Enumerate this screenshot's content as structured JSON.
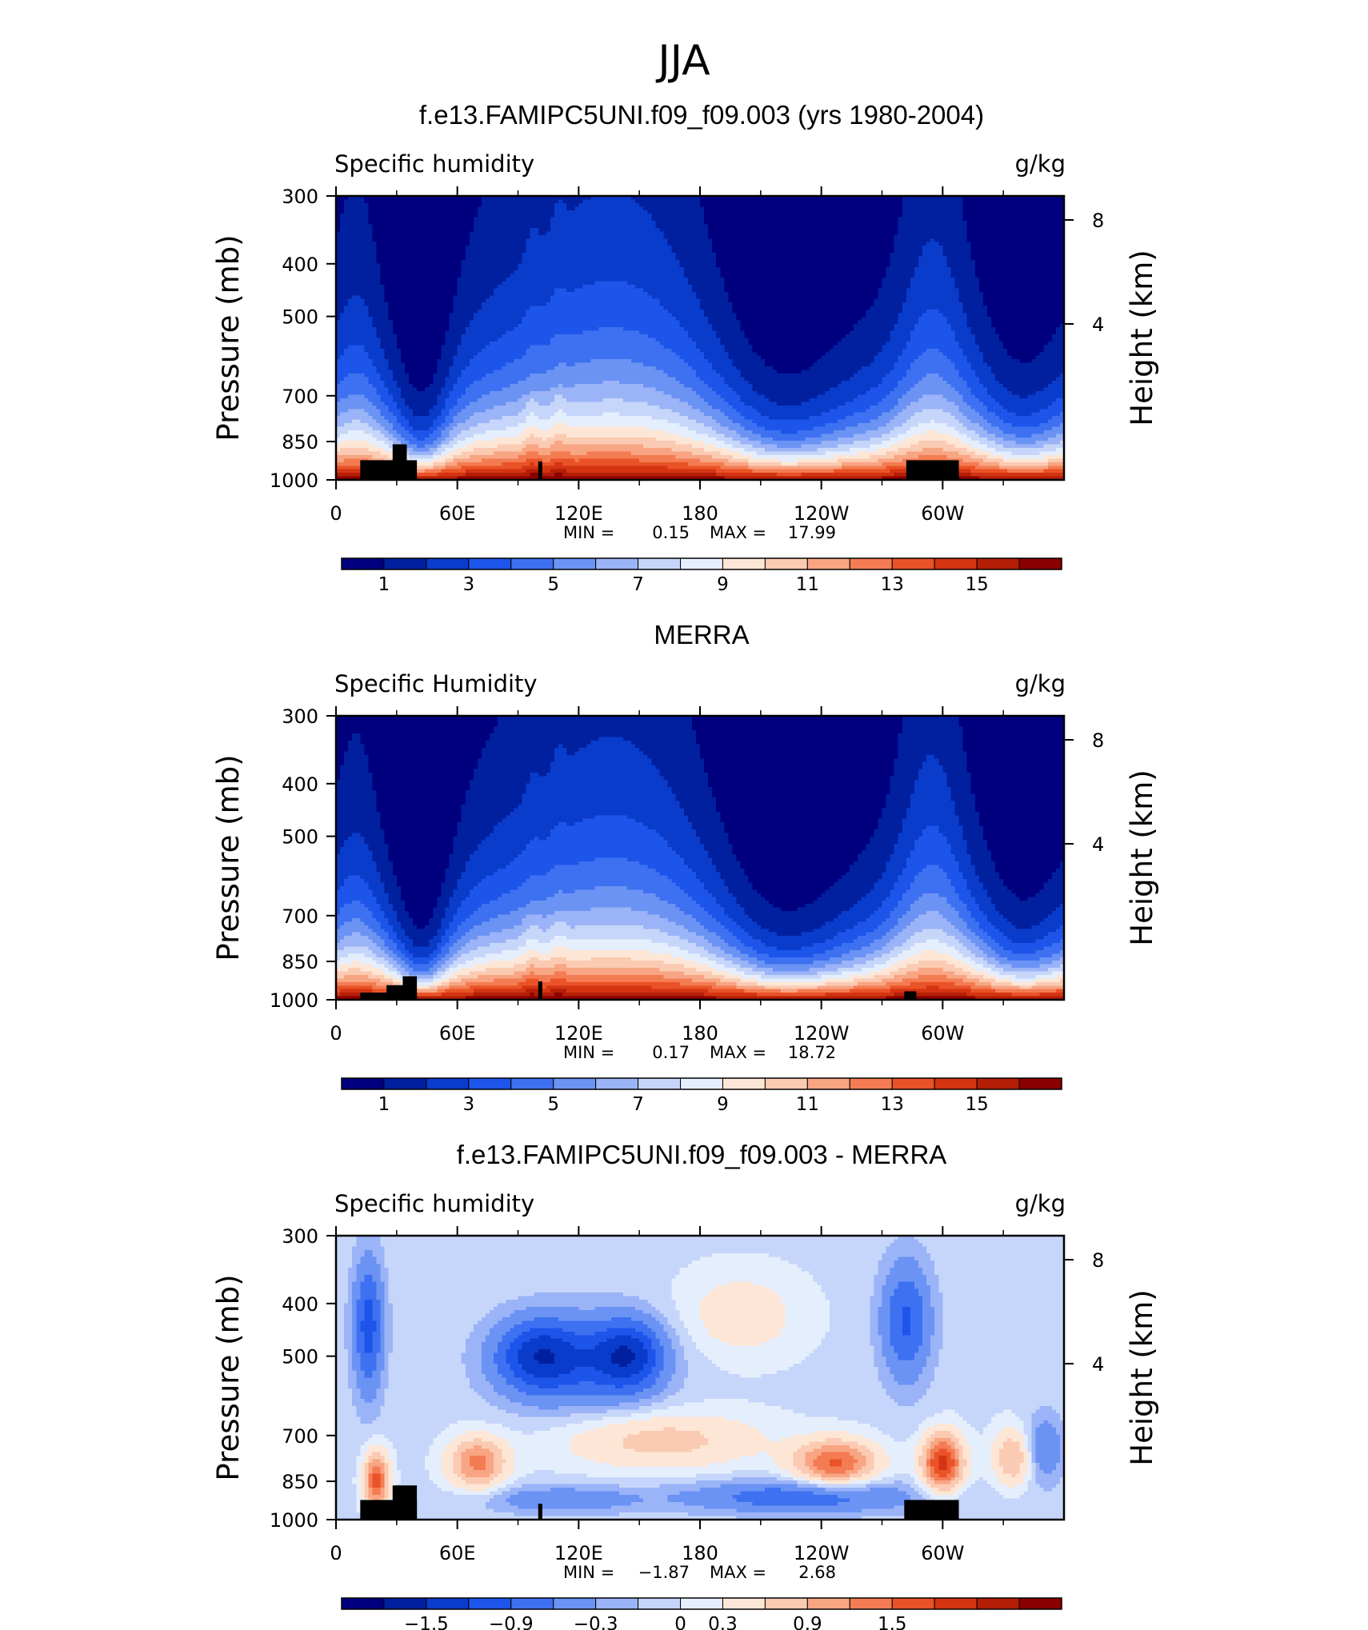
{
  "figure": {
    "title": "JJA"
  },
  "chart_data": [
    {
      "type": "heatmap",
      "title": "f.e13.FAMIPC5UNI.f09_f09.003 (yrs 1980-2004)",
      "variable": "Specific humidity",
      "units": "g/kg",
      "xlabel": "",
      "ylabel": "Pressure (mb)",
      "ylabel_right": "Height (km)",
      "x_ticks": [
        "0",
        "60E",
        "120E",
        "180",
        "120W",
        "60W"
      ],
      "y_ticks": [
        "300",
        "400",
        "500",
        "700",
        "850",
        "1000"
      ],
      "y_ticks_right": [
        "8",
        "4"
      ],
      "ylim": [
        1000,
        300
      ],
      "xlim_deg_east": [
        0,
        360
      ],
      "min_label": "MIN =",
      "min_value": "0.15",
      "max_label": "MAX =",
      "max_value": "17.99",
      "min": 0.15,
      "max": 17.99,
      "colorbar_labels": [
        "1",
        "3",
        "5",
        "7",
        "9",
        "11",
        "13",
        "15"
      ],
      "colorbar_levels": [
        0,
        1,
        2,
        3,
        4,
        5,
        6,
        7,
        8,
        9,
        10,
        11,
        12,
        13,
        14,
        15,
        16
      ]
    },
    {
      "type": "heatmap",
      "title": "MERRA",
      "variable": "Specific Humidity",
      "units": "g/kg",
      "xlabel": "",
      "ylabel": "Pressure (mb)",
      "ylabel_right": "Height (km)",
      "x_ticks": [
        "0",
        "60E",
        "120E",
        "180",
        "120W",
        "60W"
      ],
      "y_ticks": [
        "300",
        "400",
        "500",
        "700",
        "850",
        "1000"
      ],
      "y_ticks_right": [
        "8",
        "4"
      ],
      "ylim": [
        1000,
        300
      ],
      "xlim_deg_east": [
        0,
        360
      ],
      "min_label": "MIN =",
      "min_value": "0.17",
      "max_label": "MAX =",
      "max_value": "18.72",
      "min": 0.17,
      "max": 18.72,
      "colorbar_labels": [
        "1",
        "3",
        "5",
        "7",
        "9",
        "11",
        "13",
        "15"
      ],
      "colorbar_levels": [
        0,
        1,
        2,
        3,
        4,
        5,
        6,
        7,
        8,
        9,
        10,
        11,
        12,
        13,
        14,
        15,
        16
      ]
    },
    {
      "type": "heatmap",
      "title": "f.e13.FAMIPC5UNI.f09_f09.003 - MERRA",
      "variable": "Specific humidity",
      "units": "g/kg",
      "xlabel": "",
      "ylabel": "Pressure (mb)",
      "ylabel_right": "Height (km)",
      "x_ticks": [
        "0",
        "60E",
        "120E",
        "180",
        "120W",
        "60W"
      ],
      "y_ticks": [
        "300",
        "400",
        "500",
        "700",
        "850",
        "1000"
      ],
      "y_ticks_right": [
        "8",
        "4"
      ],
      "ylim": [
        1000,
        300
      ],
      "xlim_deg_east": [
        0,
        360
      ],
      "min_label": "MIN =",
      "min_value": "−1.87",
      "max_label": "MAX =",
      "max_value": "2.68",
      "min": -1.87,
      "max": 2.68,
      "colorbar_labels": [
        "−1.5",
        "−0.9",
        "−0.3",
        "0",
        "0.3",
        "0.9",
        "1.5"
      ],
      "colorbar_levels": [
        -1.8,
        -1.5,
        -1.2,
        -0.9,
        -0.6,
        -0.3,
        -0.1,
        0.1,
        0.3,
        0.6,
        0.9,
        1.2,
        1.5,
        1.8,
        2.1,
        2.4
      ]
    }
  ],
  "palette": [
    "#00007f",
    "#0020a0",
    "#0a3ccb",
    "#1d55ea",
    "#3e71f1",
    "#6b93f4",
    "#9bb3f7",
    "#c6d6fa",
    "#e5eefc",
    "#fde6d6",
    "#fbcab2",
    "#f8a584",
    "#f47c52",
    "#ea5227",
    "#d43412",
    "#b41e07",
    "#8a0000"
  ],
  "topo_color": "#000000"
}
